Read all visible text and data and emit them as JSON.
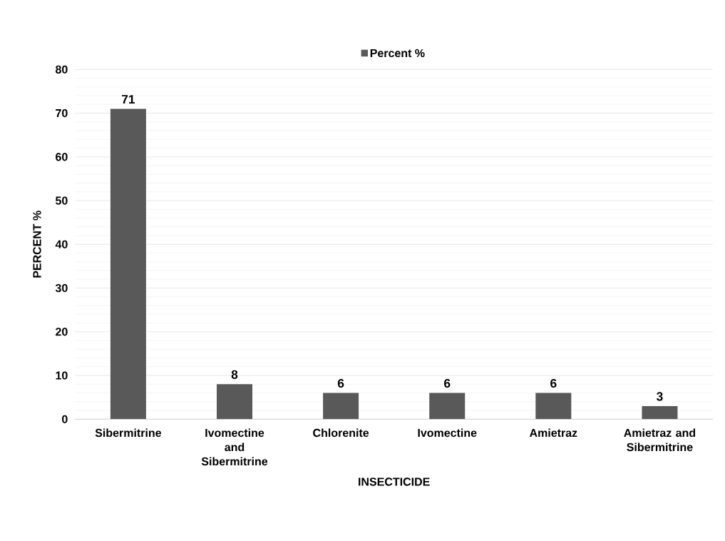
{
  "chart_data": {
    "type": "bar",
    "xlabel": "INSECTICIDE",
    "ylabel": "PERCENT %",
    "categories": [
      "Sibermitrine",
      "Ivomectine and Sibermitrine",
      "Chlorenite",
      "Ivomectine",
      "Amietraz",
      "Amietraz and Sibermitrine"
    ],
    "series": [
      {
        "name": "Percent %",
        "color": "#595959",
        "values": [
          71,
          8,
          6,
          6,
          6,
          3
        ]
      }
    ],
    "ylim": [
      0,
      80
    ],
    "yticks": [
      0,
      10,
      20,
      30,
      40,
      50,
      60,
      70,
      80
    ],
    "grid": "y",
    "legend": "top",
    "data_labels": true
  }
}
